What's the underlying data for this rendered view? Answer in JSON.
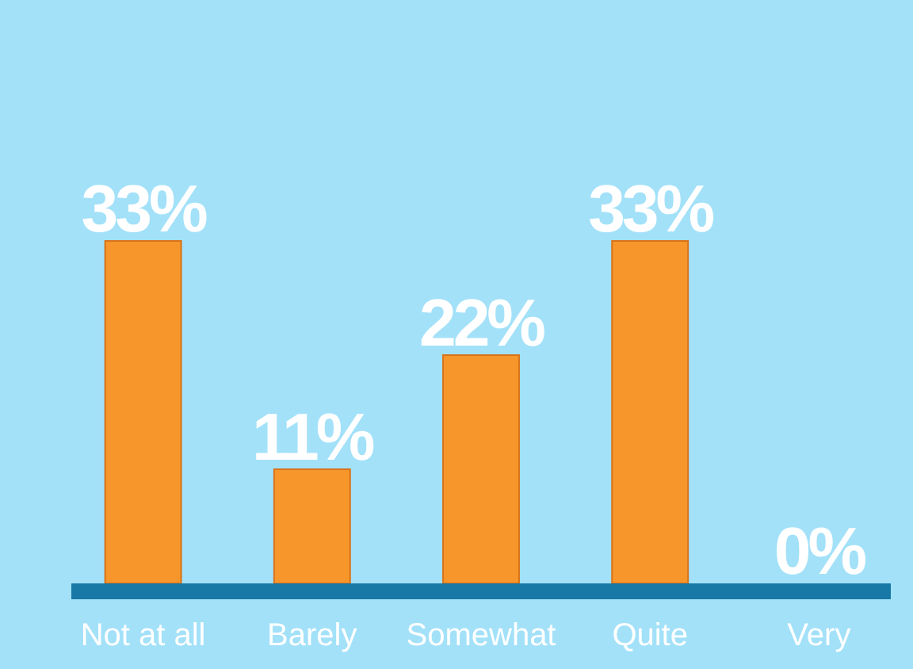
{
  "chart_data": {
    "type": "bar",
    "categories": [
      "Not at all",
      "Barely",
      "Somewhat",
      "Quite",
      "Very"
    ],
    "values": [
      33,
      11,
      22,
      33,
      0
    ],
    "value_labels": [
      "33%",
      "11%",
      "22%",
      "33%",
      "0%"
    ],
    "color": "#f7962a"
  }
}
